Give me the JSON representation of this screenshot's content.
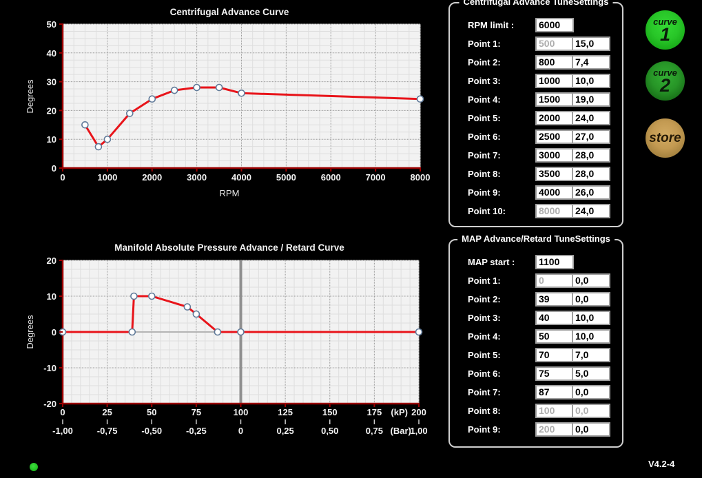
{
  "app": {
    "version": "V4.2-4"
  },
  "buttons": {
    "curve1": {
      "word": "curve",
      "num": "1"
    },
    "curve2": {
      "word": "curve",
      "num": "2"
    },
    "store": {
      "label": "store"
    }
  },
  "panels": {
    "centrifugal": {
      "title": "Centrifugal Advance TuneSettings",
      "header": {
        "label": "RPM limit :",
        "value": "6000"
      },
      "rows": [
        {
          "label": "Point 1:",
          "x": "500",
          "y": "15,0",
          "x_disabled": true
        },
        {
          "label": "Point 2:",
          "x": "800",
          "y": "7,4"
        },
        {
          "label": "Point 3:",
          "x": "1000",
          "y": "10,0"
        },
        {
          "label": "Point 4:",
          "x": "1500",
          "y": "19,0"
        },
        {
          "label": "Point 5:",
          "x": "2000",
          "y": "24,0"
        },
        {
          "label": "Point 6:",
          "x": "2500",
          "y": "27,0"
        },
        {
          "label": "Point 7:",
          "x": "3000",
          "y": "28,0"
        },
        {
          "label": "Point 8:",
          "x": "3500",
          "y": "28,0"
        },
        {
          "label": "Point 9:",
          "x": "4000",
          "y": "26,0"
        },
        {
          "label": "Point 10:",
          "x": "8000",
          "y": "24,0",
          "x_disabled": true
        }
      ]
    },
    "map": {
      "title": "MAP Advance/Retard TuneSettings",
      "header": {
        "label": "MAP start :",
        "value": "1100"
      },
      "rows": [
        {
          "label": "Point 1:",
          "x": "0",
          "y": "0,0",
          "x_disabled": true
        },
        {
          "label": "Point 2:",
          "x": "39",
          "y": "0,0"
        },
        {
          "label": "Point 3:",
          "x": "40",
          "y": "10,0"
        },
        {
          "label": "Point 4:",
          "x": "50",
          "y": "10,0"
        },
        {
          "label": "Point 5:",
          "x": "70",
          "y": "7,0"
        },
        {
          "label": "Point 6:",
          "x": "75",
          "y": "5,0"
        },
        {
          "label": "Point 7:",
          "x": "87",
          "y": "0,0"
        },
        {
          "label": "Point 8:",
          "x": "100",
          "y": "0,0",
          "x_disabled": true,
          "y_disabled": true
        },
        {
          "label": "Point 9:",
          "x": "200",
          "y": "0,0",
          "x_disabled": true
        }
      ]
    }
  },
  "chart_data": [
    {
      "type": "line",
      "title": "Centrifugal Advance Curve",
      "xlabel": "RPM",
      "ylabel": "Degrees",
      "xlim": [
        0,
        8000
      ],
      "ylim": [
        0,
        50
      ],
      "xticks": [
        0,
        1000,
        2000,
        3000,
        4000,
        5000,
        6000,
        7000,
        8000
      ],
      "yticks": [
        0,
        10,
        20,
        30,
        40,
        50
      ],
      "x_minor": 250,
      "y_minor": 2.5,
      "grid": true,
      "legend": false,
      "series": [
        {
          "name": "centrifugal-advance",
          "x": [
            500,
            800,
            1000,
            1500,
            2000,
            2500,
            3000,
            3500,
            4000,
            8000
          ],
          "y": [
            15,
            7.4,
            10,
            19,
            24,
            27,
            28,
            28,
            26,
            24
          ]
        }
      ],
      "line_color": "#e8141a",
      "marker_fill": "#ffffff",
      "marker_stroke": "#607a99",
      "axis_color": "#9a0000"
    },
    {
      "type": "line",
      "title": "Manifold Absolute Pressure Advance / Retard Curve",
      "ylabel": "Degrees",
      "xlim": [
        0,
        200
      ],
      "ylim": [
        -20,
        20
      ],
      "xticks": [
        0,
        25,
        50,
        75,
        100,
        125,
        150,
        175,
        200
      ],
      "xticks2": [
        "-1,00",
        "-0,75",
        "-0,50",
        "-0,25",
        "0",
        "0,25",
        "0,50",
        "0,75",
        "1,00"
      ],
      "xlabel_units": [
        "(kP)",
        "(Bar)"
      ],
      "yticks": [
        -20,
        -10,
        0,
        10,
        20
      ],
      "x_minor": 5,
      "y_minor": 2.5,
      "grid": true,
      "legend": false,
      "series": [
        {
          "name": "map-advance-retard",
          "x": [
            0,
            39,
            40,
            50,
            70,
            75,
            87,
            100,
            200
          ],
          "y": [
            0,
            0,
            10,
            10,
            7,
            5,
            0,
            0,
            0
          ]
        }
      ],
      "vline_x": 100,
      "hline_y": 0,
      "line_color": "#e8141a",
      "marker_fill": "#ffffff",
      "marker_stroke": "#607a99",
      "axis_color": "#9a0000"
    }
  ]
}
